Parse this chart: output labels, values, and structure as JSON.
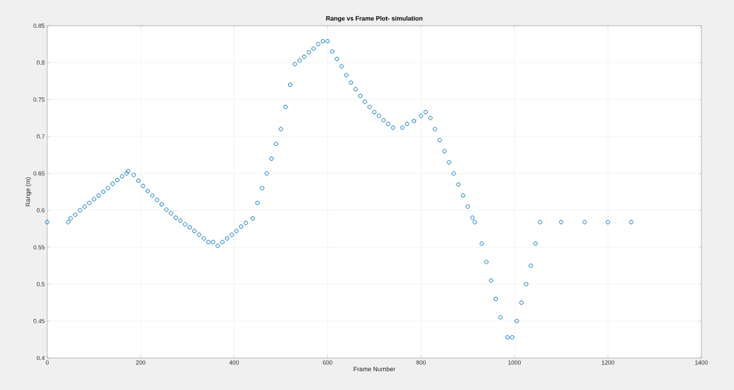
{
  "chart_data": {
    "type": "scatter",
    "title": "Range vs Frame Plot- simulation",
    "xlabel": "Frame Number",
    "ylabel": "Range (m)",
    "x": [
      0,
      45,
      50,
      60,
      70,
      80,
      90,
      100,
      110,
      120,
      130,
      140,
      150,
      160,
      170,
      173,
      185,
      195,
      205,
      215,
      225,
      235,
      245,
      255,
      265,
      275,
      285,
      295,
      305,
      315,
      325,
      335,
      345,
      355,
      365,
      375,
      385,
      395,
      405,
      415,
      425,
      440,
      450,
      460,
      470,
      480,
      490,
      500,
      510,
      520,
      530,
      540,
      550,
      560,
      570,
      580,
      590,
      600,
      610,
      620,
      630,
      640,
      650,
      660,
      670,
      680,
      690,
      700,
      710,
      720,
      730,
      740,
      760,
      770,
      785,
      800,
      810,
      820,
      830,
      840,
      850,
      860,
      870,
      880,
      890,
      900,
      910,
      915,
      930,
      940,
      950,
      960,
      970,
      985,
      995,
      1005,
      1015,
      1025,
      1035,
      1045,
      1055,
      1100,
      1150,
      1200,
      1250
    ],
    "series": [
      {
        "color": "#0072bd",
        "values": [
          0.584,
          0.584,
          0.589,
          0.594,
          0.6,
          0.605,
          0.61,
          0.615,
          0.62,
          0.625,
          0.63,
          0.636,
          0.641,
          0.646,
          0.65,
          0.653,
          0.648,
          0.64,
          0.633,
          0.626,
          0.62,
          0.614,
          0.608,
          0.601,
          0.596,
          0.59,
          0.586,
          0.581,
          0.577,
          0.572,
          0.567,
          0.562,
          0.557,
          0.557,
          0.552,
          0.557,
          0.562,
          0.567,
          0.572,
          0.578,
          0.583,
          0.589,
          0.61,
          0.63,
          0.65,
          0.67,
          0.69,
          0.71,
          0.74,
          0.77,
          0.798,
          0.803,
          0.808,
          0.814,
          0.819,
          0.825,
          0.829,
          0.829,
          0.815,
          0.805,
          0.795,
          0.783,
          0.773,
          0.764,
          0.755,
          0.747,
          0.74,
          0.733,
          0.728,
          0.722,
          0.717,
          0.712,
          0.712,
          0.717,
          0.721,
          0.728,
          0.733,
          0.725,
          0.71,
          0.695,
          0.68,
          0.665,
          0.65,
          0.635,
          0.62,
          0.605,
          0.59,
          0.584,
          0.555,
          0.53,
          0.505,
          0.48,
          0.455,
          0.428,
          0.428,
          0.45,
          0.475,
          0.5,
          0.525,
          0.555,
          0.584,
          0.584,
          0.584,
          0.584,
          0.584
        ]
      }
    ],
    "xlim": [
      0,
      1400
    ],
    "ylim": [
      0.4,
      0.85
    ],
    "xticks": [
      0,
      200,
      400,
      600,
      800,
      1000,
      1200,
      1400
    ],
    "yticks": [
      0.4,
      0.45,
      0.5,
      0.55,
      0.6,
      0.65,
      0.7,
      0.75,
      0.8,
      0.85
    ],
    "grid": true,
    "marker": "circle"
  }
}
